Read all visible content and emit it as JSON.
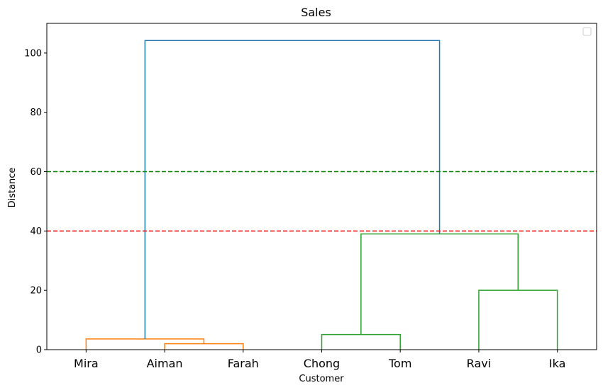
{
  "chart_data": {
    "type": "dendrogram",
    "title": "Sales",
    "xlabel": "Customer",
    "ylabel": "Distance",
    "ylim": [
      0,
      110
    ],
    "yticks": [
      0,
      20,
      40,
      60,
      80,
      100
    ],
    "leaves": [
      "Mira",
      "Aiman",
      "Farah",
      "Chong",
      "Tom",
      "Ravi",
      "Ika"
    ],
    "merges": [
      {
        "left": "Aiman",
        "right": "Farah",
        "distance": 2.0,
        "color": "#ff7f0e"
      },
      {
        "left": "Mira",
        "right": "(Aiman, Farah)",
        "distance": 3.6,
        "color": "#ff7f0e"
      },
      {
        "left": "Chong",
        "right": "Tom",
        "distance": 5.1,
        "color": "#2ca02c"
      },
      {
        "left": "Ravi",
        "right": "Ika",
        "distance": 20.0,
        "color": "#2ca02c"
      },
      {
        "left": "(Chong, Tom)",
        "right": "(Ravi, Ika)",
        "distance": 39.0,
        "color": "#2ca02c"
      },
      {
        "left": "(Mira, Aiman, Farah)",
        "right": "(Chong, Tom, Ravi, Ika)",
        "distance": 104.2,
        "color": "#1f77b4"
      }
    ],
    "threshold_lines": [
      {
        "y": 60,
        "color": "#008000",
        "style": "dashed"
      },
      {
        "y": 40,
        "color": "#ff0000",
        "style": "dashed"
      }
    ],
    "legend": {
      "placement": "top-right",
      "entries": []
    },
    "grid": false
  }
}
